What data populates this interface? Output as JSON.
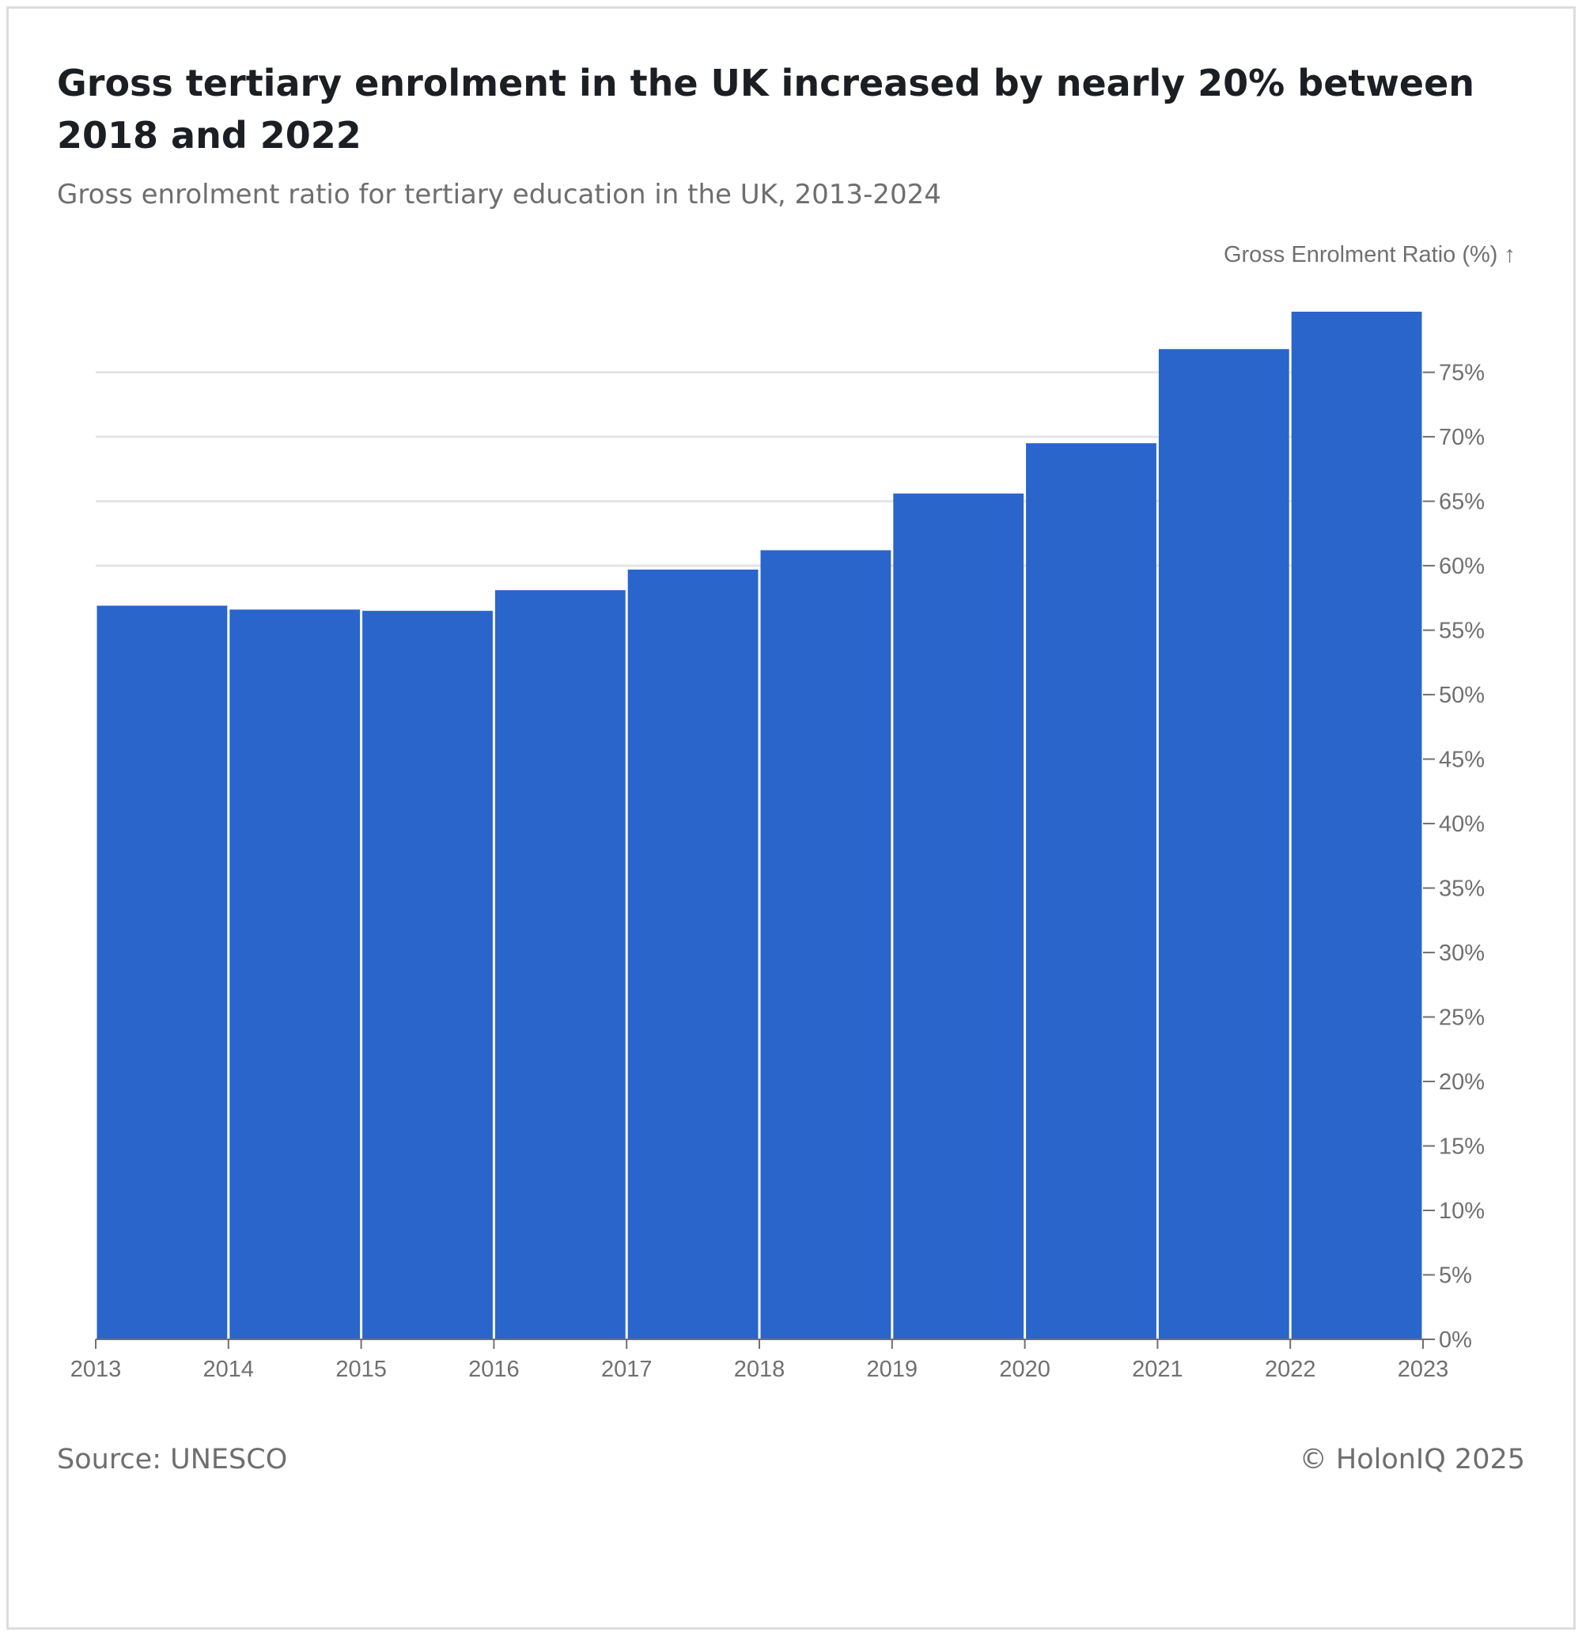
{
  "header": {
    "title": "Gross tertiary enrolment in the UK increased by nearly 20% between 2018 and 2022",
    "subtitle": "Gross enrolment ratio for tertiary education in the UK, 2013-2024"
  },
  "footer": {
    "source": "Source: UNESCO",
    "copyright": "© HolonIQ 2025"
  },
  "colors": {
    "bar": "#2a65cc",
    "grid": "#e5e5e5",
    "axis": "#707070"
  },
  "chart_data": {
    "type": "bar",
    "title": "Gross tertiary enrolment in the UK increased by nearly 20% between 2018 and 2022",
    "subtitle": "Gross enrolment ratio for tertiary education in the UK, 2013-2024",
    "ylabel": "Gross Enrolment Ratio (%) ↑",
    "xlabel": "",
    "x_ticks": [
      "2013",
      "2014",
      "2015",
      "2016",
      "2017",
      "2018",
      "2019",
      "2020",
      "2021",
      "2022",
      "2023"
    ],
    "categories": [
      "2013",
      "2014",
      "2015",
      "2016",
      "2017",
      "2018",
      "2019",
      "2020",
      "2021",
      "2022"
    ],
    "values": [
      56.9,
      56.6,
      56.5,
      58.1,
      59.7,
      61.2,
      65.6,
      69.5,
      76.8,
      79.7
    ],
    "y_ticks": [
      0,
      5,
      10,
      15,
      20,
      25,
      30,
      35,
      40,
      45,
      50,
      55,
      60,
      65,
      70,
      75
    ],
    "y_tick_suffix": "%",
    "ylim": [
      0,
      79.7
    ],
    "gridlines_at": [
      60,
      65,
      70,
      75
    ],
    "y_axis_position": "right"
  }
}
